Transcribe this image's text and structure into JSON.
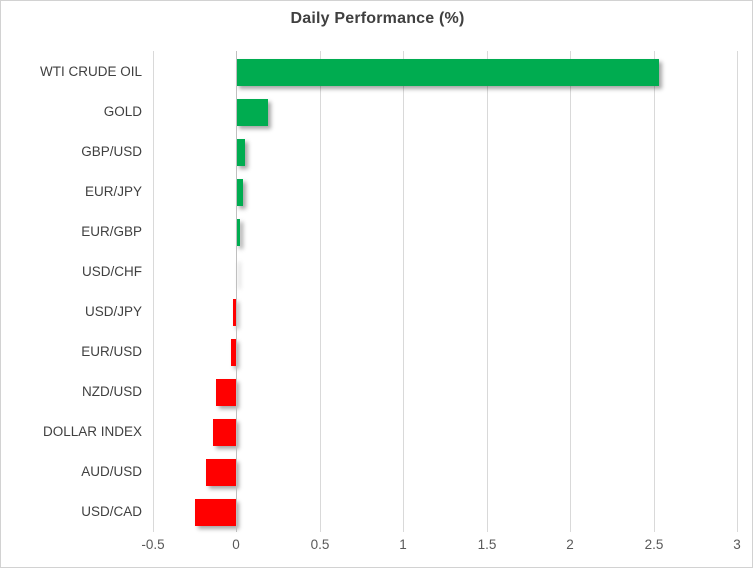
{
  "chart_data": {
    "type": "bar",
    "orientation": "horizontal",
    "title": "Daily Performance (%)",
    "categories": [
      "WTI CRUDE OIL",
      "GOLD",
      "GBP/USD",
      "EUR/JPY",
      "EUR/GBP",
      "USD/CHF",
      "USD/JPY",
      "EUR/USD",
      "NZD/USD",
      "DOLLAR INDEX",
      "AUD/USD",
      "USD/CAD"
    ],
    "values": [
      2.53,
      0.19,
      0.05,
      0.04,
      0.02,
      0.0,
      -0.02,
      -0.03,
      -0.12,
      -0.14,
      -0.18,
      -0.25
    ],
    "xlabel": "",
    "ylabel": "",
    "xlim": [
      -0.5,
      3
    ],
    "xticks": [
      -0.5,
      0,
      0.5,
      1,
      1.5,
      2,
      2.5,
      3
    ],
    "xtick_labels": [
      "-0.5",
      "0",
      "0.5",
      "1",
      "1.5",
      "2",
      "2.5",
      "3"
    ],
    "grid": true,
    "legend": false,
    "positive_color": "#00AC50",
    "negative_color": "#FF0000",
    "gridline_color": "#D9D9D9",
    "zero_axis_color": "#BFBFBF",
    "title_color": "#404040",
    "label_color": "#404040",
    "tick_color": "#595959"
  }
}
